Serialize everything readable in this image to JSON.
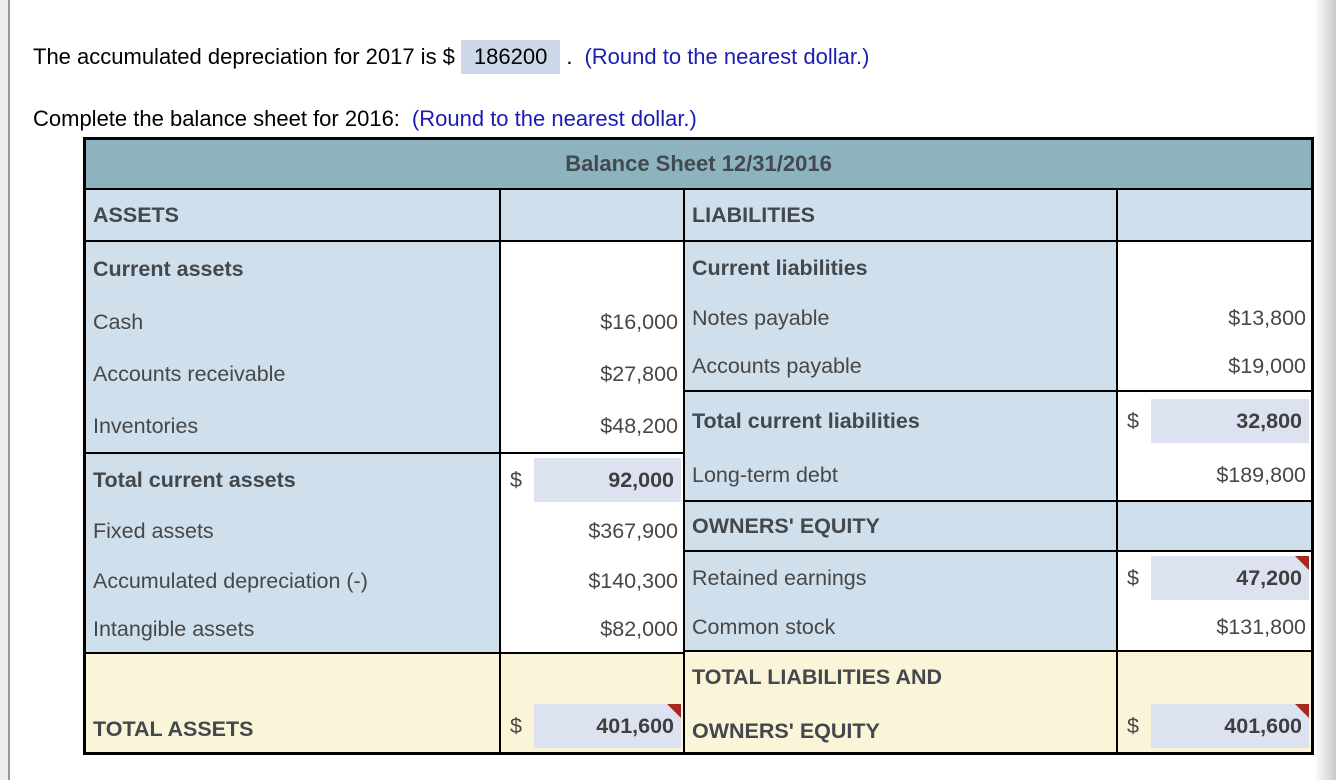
{
  "colors": {
    "header_bg": "#8db3bf",
    "label_bg": "#cfdfeb",
    "input_bg": "#dce2f0",
    "total_bg": "#faf5d8",
    "flag_red": "#a5291f",
    "link_blue": "#1b1cb2",
    "highlight_bg": "#ccd8e9"
  },
  "intro": {
    "line1_prefix": "The accumulated depreciation for 2017 is $",
    "line1_value": "186200",
    "line1_period": ".",
    "line1_note": "(Round to the nearest dollar.)",
    "line2_text": "Complete the balance sheet for 2016:",
    "line2_note": "(Round to the nearest dollar.)"
  },
  "balance_sheet": {
    "title": "Balance Sheet 12/31/2016",
    "left_column": {
      "blocks": [
        {
          "type": "section-header",
          "rows": [
            {
              "label": "ASSETS",
              "bold": true
            }
          ]
        },
        {
          "type": "group",
          "rows": [
            {
              "label": "Current assets",
              "bold": true
            },
            {
              "label": "Cash",
              "value": "$16,000"
            },
            {
              "label": "Accounts receivable",
              "value": "$27,800"
            },
            {
              "label": "Inventories",
              "value": "$48,200"
            }
          ]
        },
        {
          "type": "group",
          "rows": [
            {
              "label": "Total current assets",
              "bold": true,
              "input": {
                "currency": "$",
                "value": "92,000",
                "flagged": false
              }
            },
            {
              "label": "Fixed assets",
              "value": "$367,900"
            },
            {
              "label": "Accumulated depreciation (-)",
              "value": "$140,300"
            },
            {
              "label": "Intangible assets",
              "value": "$82,000"
            }
          ]
        },
        {
          "type": "total",
          "rows": [
            {
              "label": "TOTAL ASSETS",
              "bold": true,
              "input": {
                "currency": "$",
                "value": "401,600",
                "flagged": true
              }
            }
          ]
        }
      ]
    },
    "right_column": {
      "blocks": [
        {
          "type": "section-header",
          "rows": [
            {
              "label": "LIABILITIES",
              "bold": true
            }
          ]
        },
        {
          "type": "group",
          "rows": [
            {
              "label": "Current liabilities",
              "bold": true
            },
            {
              "label": "Notes payable",
              "value": "$13,800"
            },
            {
              "label": "Accounts payable",
              "value": "$19,000"
            }
          ]
        },
        {
          "type": "group",
          "rows": [
            {
              "label": "Total current liabilities",
              "bold": true,
              "input": {
                "currency": "$",
                "value": "32,800",
                "flagged": false
              }
            },
            {
              "label": "Long-term debt",
              "value": "$189,800"
            }
          ]
        },
        {
          "type": "section-header",
          "rows": [
            {
              "label": "OWNERS' EQUITY",
              "bold": true
            }
          ]
        },
        {
          "type": "group",
          "rows": [
            {
              "label": "Retained earnings",
              "input": {
                "currency": "$",
                "value": "47,200",
                "flagged": true
              }
            },
            {
              "label": "Common stock",
              "value": "$131,800"
            }
          ]
        },
        {
          "type": "total",
          "rows": [
            {
              "label_lines": [
                "TOTAL LIABILITIES AND",
                "OWNERS' EQUITY"
              ],
              "bold": true,
              "input": {
                "currency": "$",
                "value": "401,600",
                "flagged": true
              }
            }
          ]
        }
      ]
    }
  }
}
